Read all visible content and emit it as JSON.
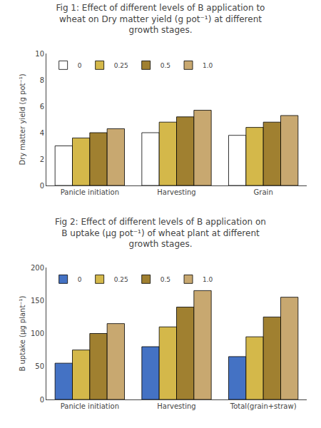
{
  "chart_data": [
    {
      "type": "bar",
      "title": "Fig 1: Effect of different levels of B application to\nwheat on Dry matter yield (g pot⁻¹) at different\ngrowth stages.",
      "ylabel": "Dry matter yield (g pot⁻¹)",
      "categories": [
        "Panicle initiation",
        "Harvesting",
        "Grain"
      ],
      "series": [
        {
          "name": "0",
          "color": "#ffffff",
          "values": [
            3.0,
            4.0,
            3.8
          ]
        },
        {
          "name": "0.25",
          "color": "#d4b84a",
          "values": [
            3.6,
            4.8,
            4.4
          ]
        },
        {
          "name": "0.5",
          "color": "#a08030",
          "values": [
            4.0,
            5.2,
            4.8
          ]
        },
        {
          "name": "1.0",
          "color": "#c8a870",
          "values": [
            4.3,
            5.7,
            5.3
          ]
        }
      ],
      "ylim": [
        0,
        10
      ],
      "yticks": [
        0,
        2,
        4,
        6,
        8,
        10
      ],
      "grid": false,
      "legend": "upper left"
    },
    {
      "type": "bar",
      "title": "Fig 2: Effect of different levels of B application on\nB uptake (μg pot⁻¹) of wheat plant at different\ngrowth stages.",
      "ylabel": "B uptake (μg plant⁻¹)",
      "categories": [
        "Panicle initiation",
        "Harvesting",
        "Total(grain+straw)"
      ],
      "series": [
        {
          "name": "0",
          "color": "#4472c4",
          "values": [
            55,
            80,
            65
          ]
        },
        {
          "name": "0.25",
          "color": "#d4b84a",
          "values": [
            75,
            110,
            95
          ]
        },
        {
          "name": "0.5",
          "color": "#a08030",
          "values": [
            100,
            140,
            125
          ]
        },
        {
          "name": "1.0",
          "color": "#c8a870",
          "values": [
            115,
            165,
            155
          ]
        }
      ],
      "ylim": [
        0,
        200
      ],
      "yticks": [
        0,
        50,
        100,
        150,
        200
      ],
      "grid": false,
      "legend": "upper left"
    }
  ]
}
